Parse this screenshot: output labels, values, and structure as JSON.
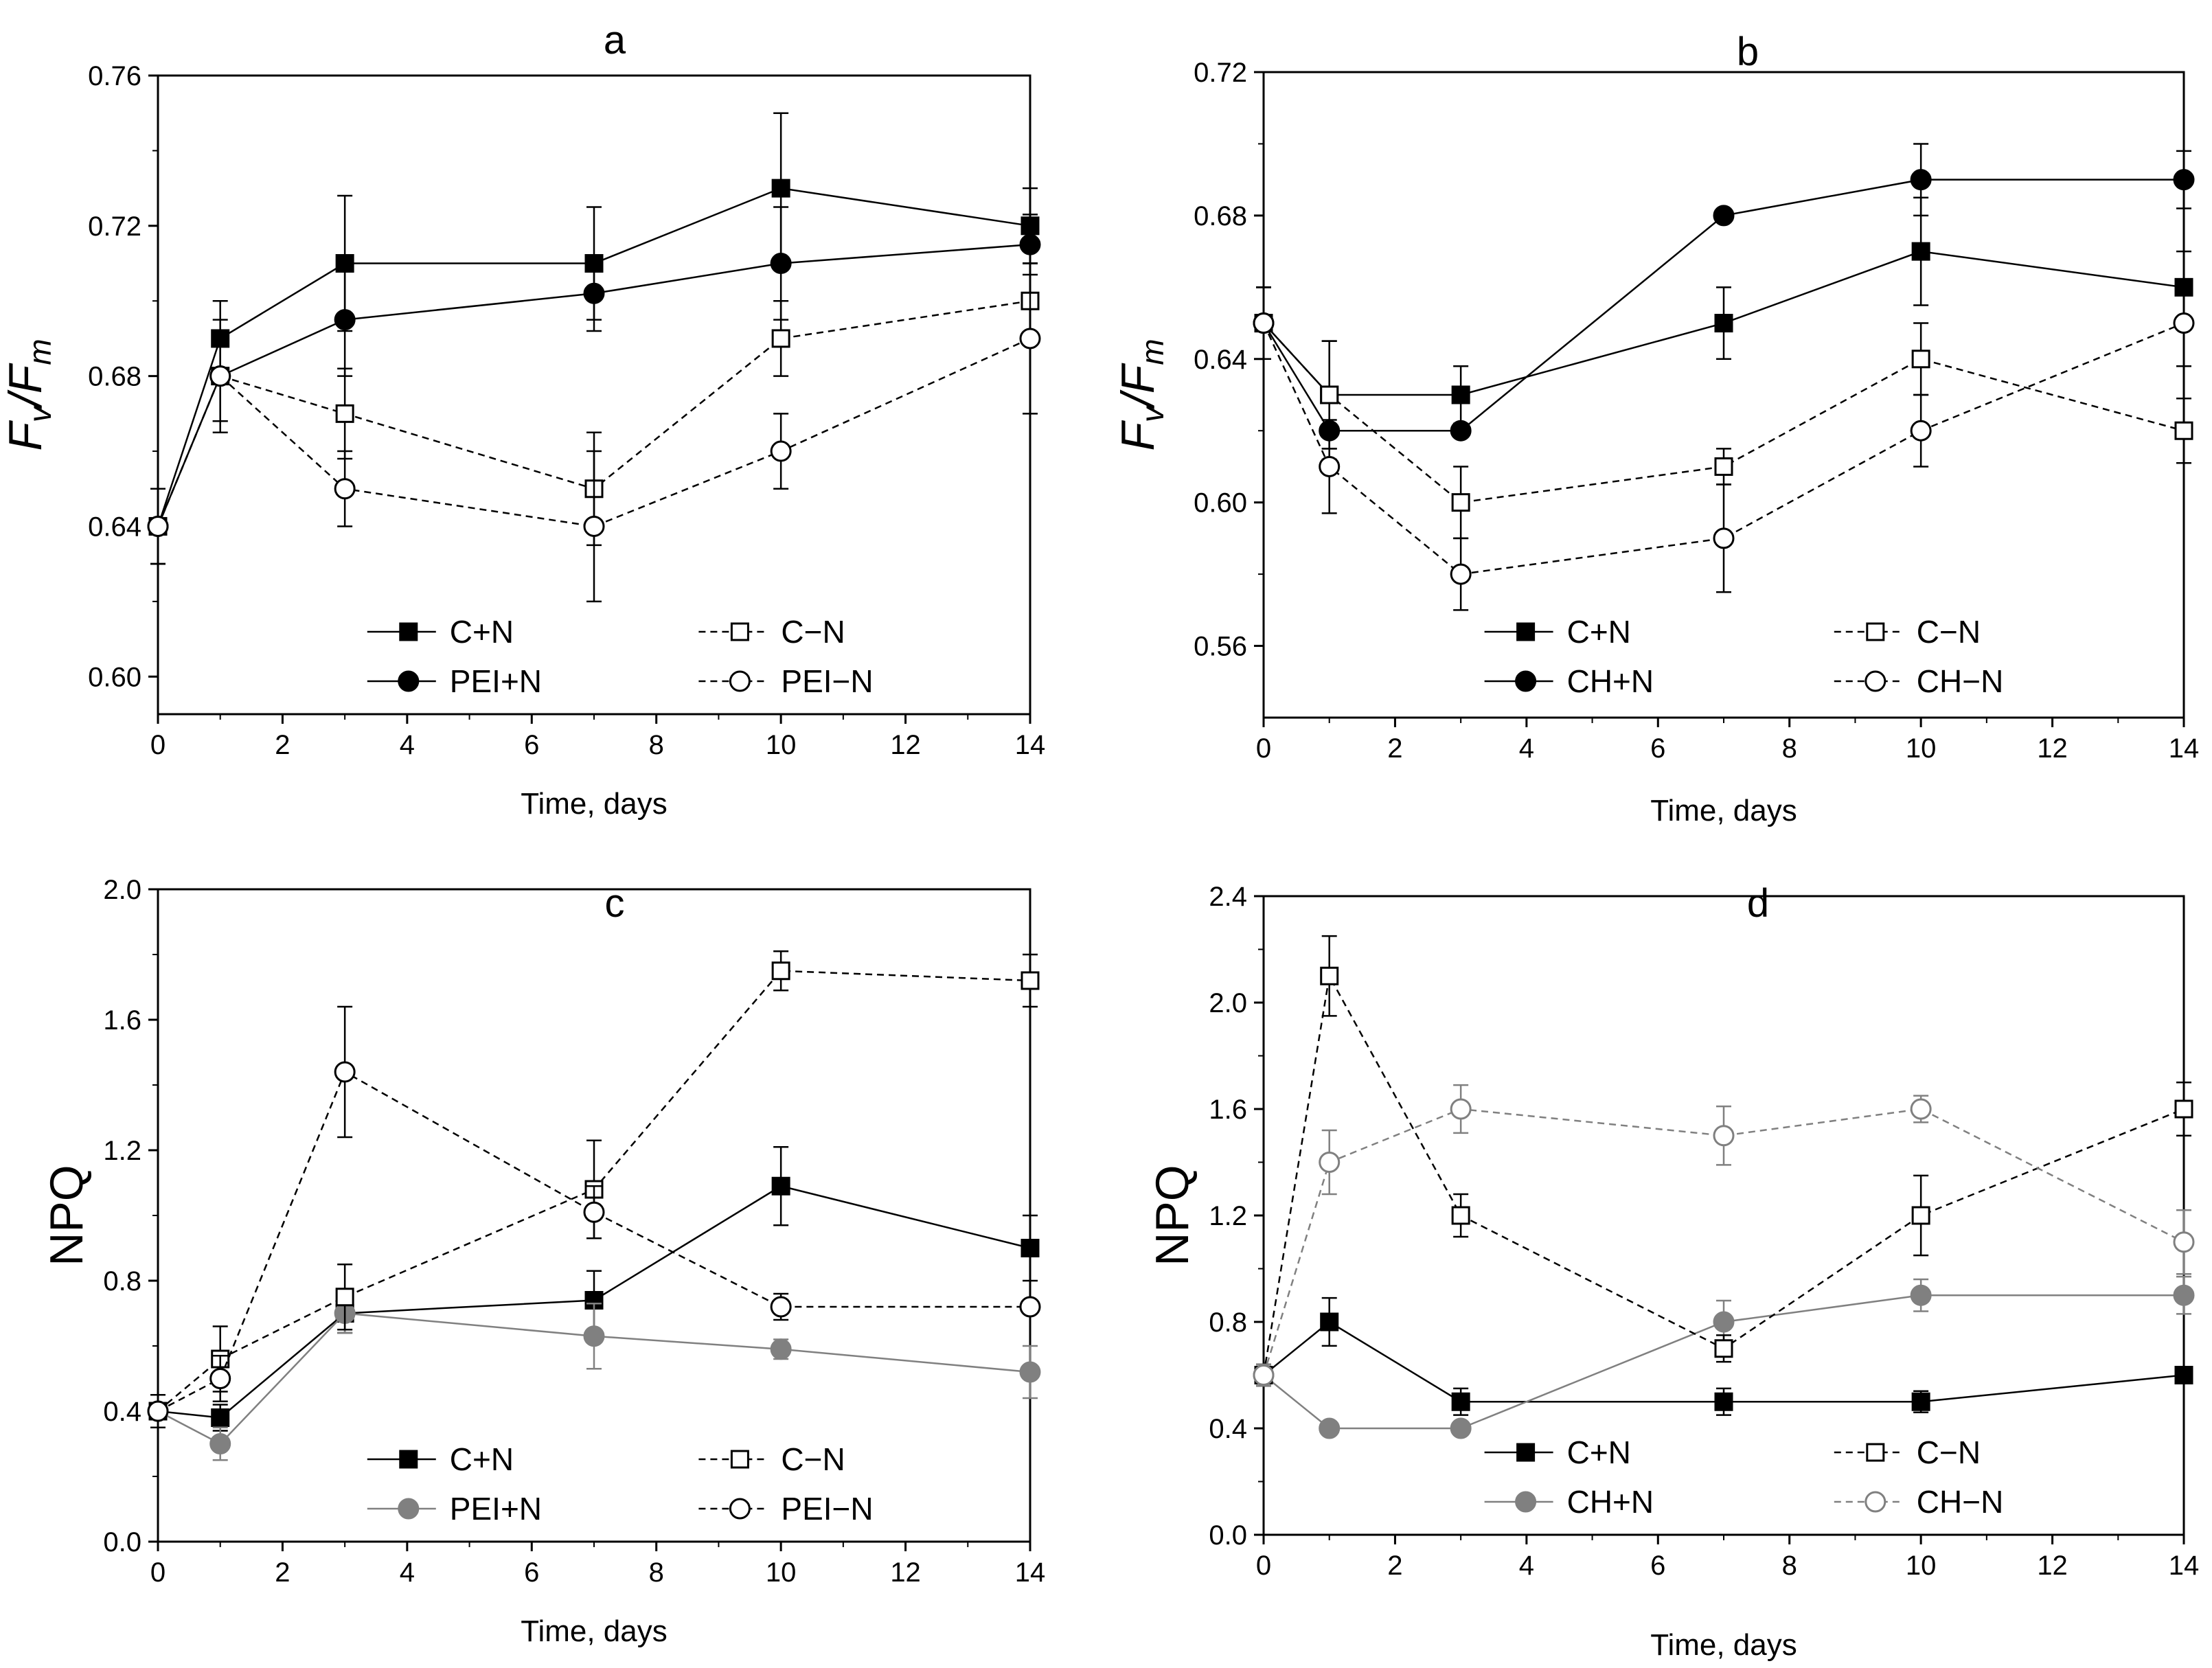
{
  "figure": {
    "x_axis_title": "Time, days",
    "x_range": [
      0,
      14
    ],
    "x_ticks": [
      0,
      2,
      4,
      6,
      8,
      10,
      12,
      14
    ]
  },
  "chart_data": [
    {
      "type": "line",
      "panel": "a",
      "xlabel": "Time, days",
      "ylabel": "Fv/Fm",
      "ylabel_main": "F",
      "ylabel_sub1": "v",
      "ylabel_sep": "/F",
      "ylabel_sub2": "m",
      "ylim": [
        0.59,
        0.76
      ],
      "yticks": [
        0.6,
        0.64,
        0.68,
        0.72,
        0.76
      ],
      "ytick_decimals": 2,
      "legend_position": "bottom-right",
      "series": [
        {
          "name": "C+N",
          "style": "solid",
          "marker": "square-filled",
          "color": "#000000",
          "x": [
            0,
            1,
            3,
            7,
            10,
            14
          ],
          "values": [
            0.64,
            0.69,
            0.71,
            0.71,
            0.73,
            0.72
          ],
          "errors": [
            0.01,
            0.01,
            0.018,
            0.015,
            0.02,
            0.01
          ]
        },
        {
          "name": "PEI+N",
          "style": "solid",
          "marker": "circle-filled",
          "color": "#000000",
          "x": [
            0,
            1,
            3,
            7,
            10,
            14
          ],
          "values": [
            0.64,
            0.68,
            0.695,
            0.702,
            0.71,
            0.715
          ],
          "errors": [
            0.01,
            0.012,
            0.015,
            0.01,
            0.015,
            0.008
          ]
        },
        {
          "name": "C−N",
          "style": "dashed",
          "marker": "square-open",
          "color": "#000000",
          "x": [
            0,
            1,
            3,
            7,
            10,
            14
          ],
          "values": [
            0.64,
            0.68,
            0.67,
            0.65,
            0.69,
            0.7
          ],
          "errors": [
            0.01,
            0.012,
            0.012,
            0.015,
            0.01,
            0.01
          ]
        },
        {
          "name": "PEI−N",
          "style": "dashed",
          "marker": "circle-open",
          "color": "#000000",
          "x": [
            0,
            1,
            3,
            7,
            10,
            14
          ],
          "values": [
            0.64,
            0.68,
            0.65,
            0.64,
            0.66,
            0.69
          ],
          "errors": [
            0.01,
            0.015,
            0.01,
            0.02,
            0.01,
            0.02
          ]
        }
      ]
    },
    {
      "type": "line",
      "panel": "b",
      "xlabel": "Time, days",
      "ylabel": "Fv/Fm",
      "ylabel_main": "F",
      "ylabel_sub1": "v",
      "ylabel_sep": "/F",
      "ylabel_sub2": "m",
      "ylim": [
        0.54,
        0.72
      ],
      "yticks": [
        0.56,
        0.6,
        0.64,
        0.68,
        0.72
      ],
      "ytick_decimals": 2,
      "legend_position": "bottom-right",
      "series": [
        {
          "name": "C+N",
          "style": "solid",
          "marker": "square-filled",
          "color": "#000000",
          "x": [
            0,
            1,
            3,
            7,
            10,
            14
          ],
          "values": [
            0.65,
            0.63,
            0.63,
            0.65,
            0.67,
            0.66
          ],
          "errors": [
            0.01,
            0.015,
            0.008,
            0.01,
            0.015,
            0.01
          ]
        },
        {
          "name": "CH+N",
          "style": "solid",
          "marker": "circle-filled",
          "color": "#000000",
          "x": [
            0,
            1,
            3,
            7,
            10,
            14
          ],
          "values": [
            0.65,
            0.62,
            0.62,
            0.68,
            0.69,
            0.69
          ],
          "errors": [
            0.01,
            0.008,
            0.0,
            0.0,
            0.01,
            0.008
          ]
        },
        {
          "name": "C−N",
          "style": "dashed",
          "marker": "square-open",
          "color": "#000000",
          "x": [
            0,
            1,
            3,
            7,
            10,
            14
          ],
          "values": [
            0.65,
            0.63,
            0.6,
            0.61,
            0.64,
            0.62
          ],
          "errors": [
            0.01,
            0.015,
            0.01,
            0.005,
            0.01,
            0.009
          ]
        },
        {
          "name": "CH−N",
          "style": "dashed",
          "marker": "circle-open",
          "color": "#000000",
          "x": [
            0,
            1,
            3,
            7,
            10,
            14
          ],
          "values": [
            0.65,
            0.61,
            0.58,
            0.59,
            0.62,
            0.65
          ],
          "errors": [
            0.01,
            0.013,
            0.01,
            0.015,
            0.01,
            0.012
          ]
        }
      ]
    },
    {
      "type": "line",
      "panel": "c",
      "xlabel": "Time, days",
      "ylabel": "NPQ",
      "ylim": [
        0.0,
        2.0
      ],
      "yticks": [
        0.0,
        0.4,
        0.8,
        1.2,
        1.6,
        2.0
      ],
      "ytick_decimals": 1,
      "legend_position": "bottom-right",
      "series": [
        {
          "name": "C+N",
          "style": "solid",
          "marker": "square-filled",
          "color": "#000000",
          "x": [
            0,
            1,
            3,
            7,
            10,
            14
          ],
          "values": [
            0.4,
            0.38,
            0.7,
            0.74,
            1.09,
            0.9
          ],
          "errors": [
            0.05,
            0.04,
            0.06,
            0.09,
            0.12,
            0.1
          ]
        },
        {
          "name": "PEI+N",
          "style": "solid",
          "marker": "circle-filled",
          "color": "#808080",
          "x": [
            0,
            1,
            3,
            7,
            10,
            14
          ],
          "values": [
            0.4,
            0.3,
            0.7,
            0.63,
            0.59,
            0.52
          ],
          "errors": [
            0.05,
            0.05,
            0.06,
            0.1,
            0.03,
            0.08
          ]
        },
        {
          "name": "C−N",
          "style": "dashed",
          "marker": "square-open",
          "color": "#000000",
          "x": [
            0,
            1,
            3,
            7,
            10,
            14
          ],
          "values": [
            0.4,
            0.56,
            0.75,
            1.08,
            1.75,
            1.72
          ],
          "errors": [
            0.05,
            0.1,
            0.1,
            0.15,
            0.06,
            0.08
          ]
        },
        {
          "name": "PEI−N",
          "style": "dashed",
          "marker": "circle-open",
          "color": "#000000",
          "x": [
            0,
            1,
            3,
            7,
            10,
            14
          ],
          "values": [
            0.4,
            0.5,
            1.44,
            1.01,
            0.72,
            0.72
          ],
          "errors": [
            0.05,
            0.07,
            0.2,
            0.08,
            0.04,
            0.02
          ]
        }
      ]
    },
    {
      "type": "line",
      "panel": "d",
      "xlabel": "Time, days",
      "ylabel": "NPQ",
      "ylim": [
        0.0,
        2.4
      ],
      "yticks": [
        0.0,
        0.4,
        0.8,
        1.2,
        1.6,
        2.0,
        2.4
      ],
      "ytick_decimals": 1,
      "legend_position": "bottom-right",
      "series": [
        {
          "name": "C+N",
          "style": "solid",
          "marker": "square-filled",
          "color": "#000000",
          "x": [
            0,
            1,
            3,
            7,
            10,
            14
          ],
          "values": [
            0.6,
            0.8,
            0.5,
            0.5,
            0.5,
            0.6
          ],
          "errors": [
            0.04,
            0.09,
            0.05,
            0.05,
            0.04,
            0.0
          ]
        },
        {
          "name": "CH+N",
          "style": "solid",
          "marker": "circle-filled",
          "color": "#808080",
          "x": [
            0,
            1,
            3,
            7,
            10,
            14
          ],
          "values": [
            0.6,
            0.4,
            0.4,
            0.8,
            0.9,
            0.9
          ],
          "errors": [
            0.04,
            0.0,
            0.0,
            0.08,
            0.06,
            0.07
          ]
        },
        {
          "name": "C−N",
          "style": "dashed",
          "marker": "square-open",
          "color": "#000000",
          "x": [
            0,
            1,
            3,
            7,
            10,
            14
          ],
          "values": [
            0.6,
            2.1,
            1.2,
            0.7,
            1.2,
            1.6
          ],
          "errors": [
            0.04,
            0.15,
            0.08,
            0.05,
            0.15,
            0.1
          ]
        },
        {
          "name": "CH−N",
          "style": "dashed",
          "marker": "circle-open",
          "color": "#808080",
          "x": [
            0,
            1,
            3,
            7,
            10,
            14
          ],
          "values": [
            0.6,
            1.4,
            1.6,
            1.5,
            1.6,
            1.1
          ],
          "errors": [
            0.04,
            0.12,
            0.09,
            0.11,
            0.05,
            0.12
          ]
        }
      ]
    }
  ]
}
